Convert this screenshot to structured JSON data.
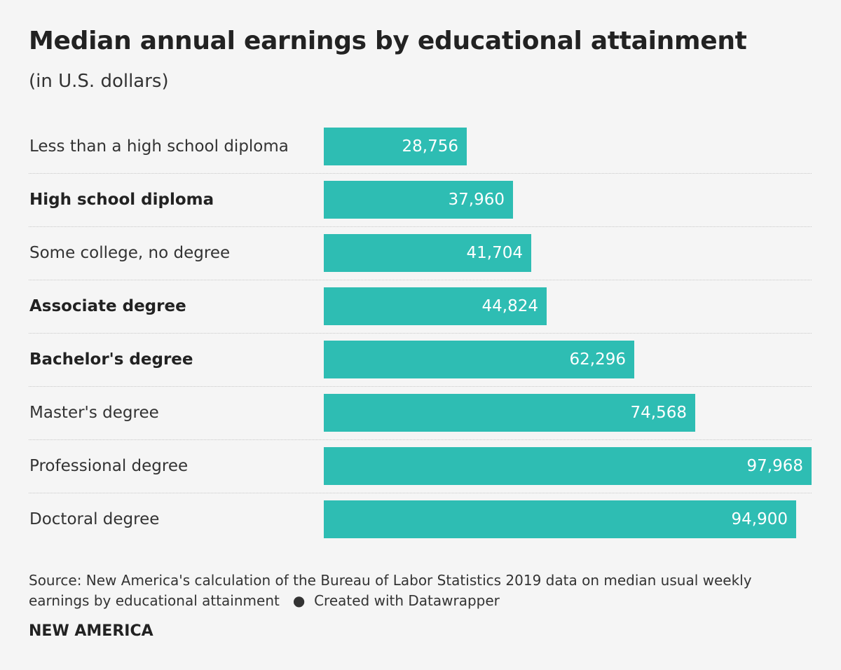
{
  "header": {
    "title": "Median annual earnings by educational attainment",
    "subtitle": "(in U.S. dollars)"
  },
  "chart_data": {
    "type": "bar",
    "orientation": "horizontal",
    "categories": [
      "Less than a high school diploma",
      "High school diploma",
      "Some college, no degree",
      "Associate degree",
      "Bachelor's degree",
      "Master's degree",
      "Professional degree",
      "Doctoral degree"
    ],
    "values": [
      28756,
      37960,
      41704,
      44824,
      62296,
      74568,
      97968,
      94900
    ],
    "value_labels": [
      "28,756",
      "37,960",
      "41,704",
      "44,824",
      "62,296",
      "74,568",
      "97,968",
      "94,900"
    ],
    "bold_categories": [
      false,
      true,
      false,
      true,
      true,
      false,
      false,
      false
    ],
    "xlim": [
      0,
      97968
    ],
    "bar_color": "#2ebdb3",
    "value_label_color": "#ffffff",
    "grid": false,
    "legend": "none"
  },
  "footer": {
    "source": "Source: New America's calculation of the Bureau of Labor Statistics 2019 data on median usual weekly earnings by educational attainment",
    "credit": "Created with Datawrapper",
    "brand": "NEW AMERICA"
  },
  "colors": {
    "background": "#f5f5f5",
    "text": "#222222",
    "bar": "#2ebdb3"
  }
}
